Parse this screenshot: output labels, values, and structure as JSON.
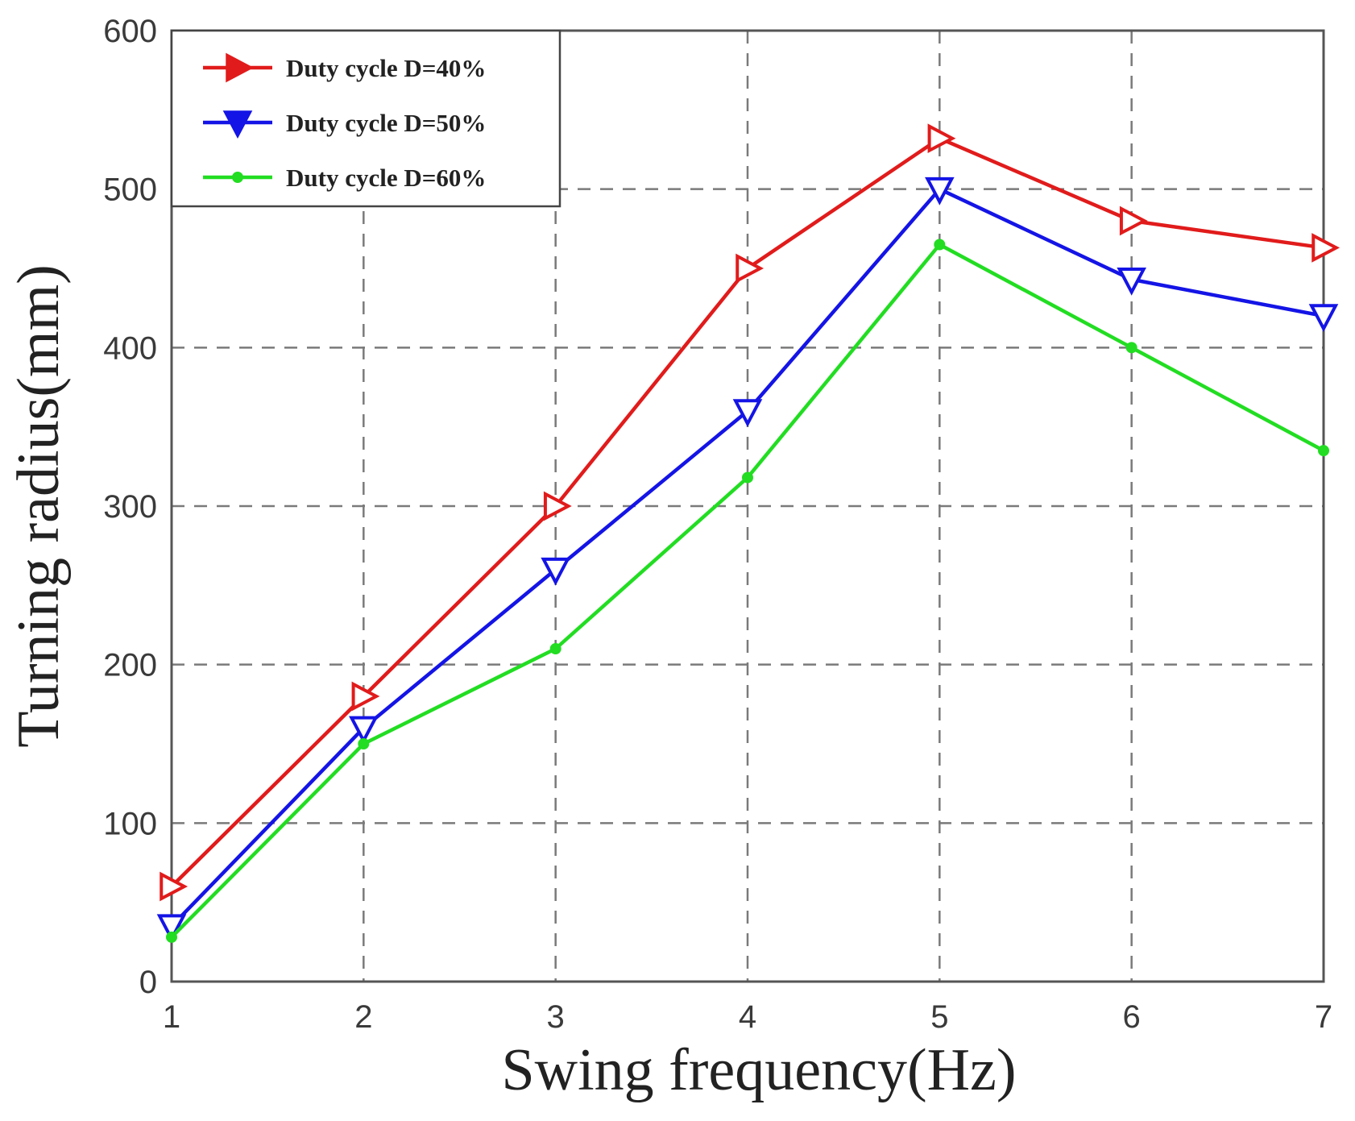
{
  "chart_data": {
    "type": "line",
    "title": "",
    "xlabel": "Swing frequency(Hz)",
    "ylabel": "Turning radius(mm)",
    "x": [
      1,
      2,
      3,
      4,
      5,
      6,
      7
    ],
    "xlim": [
      1,
      7
    ],
    "ylim": [
      0,
      600
    ],
    "xticks": [
      "1",
      "2",
      "3",
      "4",
      "5",
      "6",
      "7"
    ],
    "yticks": [
      "0",
      "100",
      "200",
      "300",
      "400",
      "500",
      "600"
    ],
    "grid": true,
    "legend_position": "top-left",
    "series": [
      {
        "name": "Duty cycle D=40%",
        "color": "#e11b1b",
        "marker": "triangle-right",
        "values": [
          60,
          180,
          300,
          450,
          532,
          480,
          463
        ]
      },
      {
        "name": "Duty cycle D=50%",
        "color": "#1414e6",
        "marker": "triangle-down",
        "values": [
          35,
          160,
          260,
          360,
          500,
          443,
          420
        ]
      },
      {
        "name": "Duty cycle D=60%",
        "color": "#22dd22",
        "marker": "dot",
        "values": [
          28,
          150,
          210,
          318,
          465,
          400,
          335
        ]
      }
    ]
  }
}
